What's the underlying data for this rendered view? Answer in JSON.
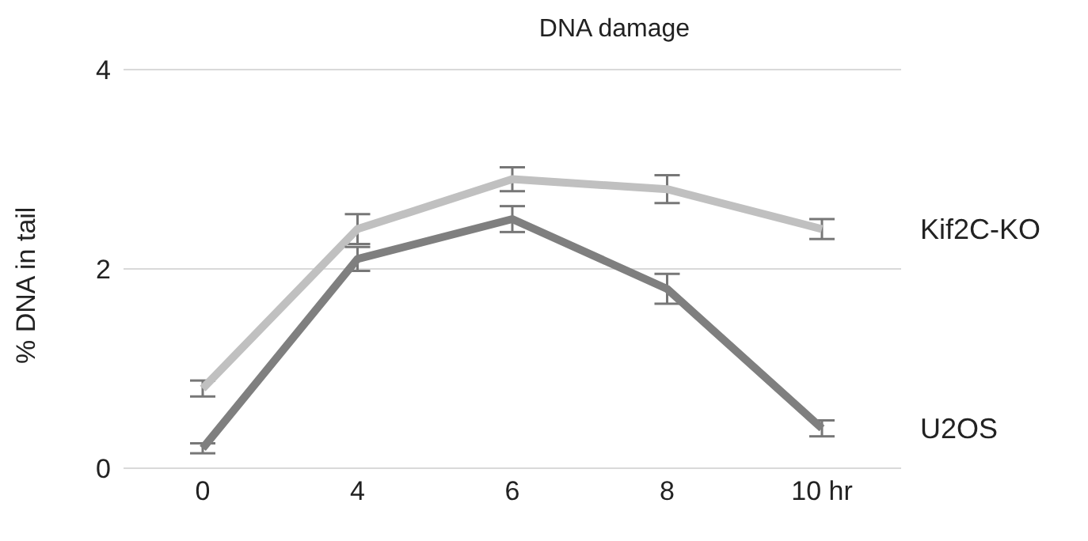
{
  "chart_data": {
    "type": "line",
    "title": "DNA damage",
    "ylabel": "% DNA in tail",
    "categories": [
      "0",
      "4",
      "6",
      "8",
      "10 hr"
    ],
    "series": [
      {
        "name": "Kif2C-KO",
        "color": "#c0c0c0",
        "values": [
          0.8,
          2.4,
          2.9,
          2.8,
          2.4
        ],
        "errors": [
          0.08,
          0.15,
          0.12,
          0.14,
          0.1
        ]
      },
      {
        "name": "U2OS",
        "color": "#7f7f7f",
        "values": [
          0.2,
          2.1,
          2.5,
          1.8,
          0.4
        ],
        "errors": [
          0.05,
          0.12,
          0.13,
          0.15,
          0.08
        ]
      }
    ],
    "ylim": [
      0,
      4
    ],
    "yticks": [
      0,
      2,
      4
    ],
    "grid": "y",
    "legend": false,
    "marker": "none",
    "line_style": "solid"
  }
}
